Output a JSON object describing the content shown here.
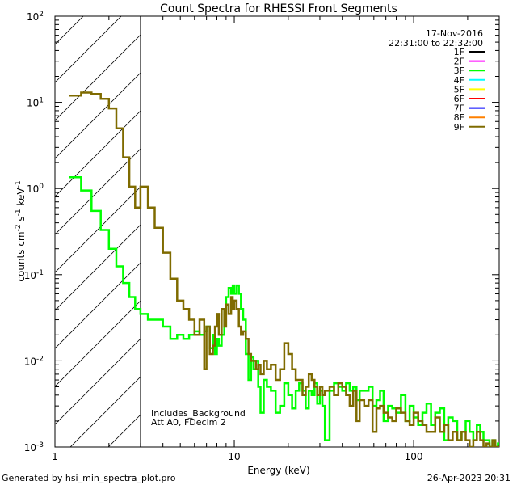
{
  "chart_data": {
    "type": "line",
    "title": "Count Spectra for RHESSI Front Segments",
    "xlabel": "Energy (keV)",
    "ylabel": "counts cm-2 s-1 keV-1",
    "ylabel_parts": {
      "base": "counts cm",
      "exp1": "-2",
      "mid": " s",
      "exp2": "-1",
      "unit": " keV",
      "exp3": "-1"
    },
    "xscale": "log",
    "yscale": "log",
    "xlim": [
      1,
      300
    ],
    "ylim": [
      0.001,
      100
    ],
    "x_ticks": [
      {
        "value": 1,
        "label": "1"
      },
      {
        "value": 10,
        "label": "10"
      },
      {
        "value": 100,
        "label": "100"
      }
    ],
    "y_ticks": [
      {
        "value": 0.001,
        "base": "10",
        "exp": "-3"
      },
      {
        "value": 0.01,
        "base": "10",
        "exp": "-2"
      },
      {
        "value": 0.1,
        "base": "10",
        "exp": "-1"
      },
      {
        "value": 1,
        "base": "10",
        "exp": "0"
      },
      {
        "value": 10,
        "base": "10",
        "exp": "1"
      },
      {
        "value": 100,
        "base": "10",
        "exp": "2"
      }
    ],
    "hatched_region": {
      "from": 1,
      "to": 3
    },
    "legend": {
      "date": "17-Nov-2016",
      "time_range": "22:31:00 to 22:32:00",
      "placement": "top-right",
      "entries": [
        {
          "label": "1F",
          "color": "#000000"
        },
        {
          "label": "2F",
          "color": "#ff00ff"
        },
        {
          "label": "3F",
          "color": "#00ff00"
        },
        {
          "label": "4F",
          "color": "#00ffff"
        },
        {
          "label": "5F",
          "color": "#ffff00"
        },
        {
          "label": "6F",
          "color": "#ff0000"
        },
        {
          "label": "7F",
          "color": "#0000ff"
        },
        {
          "label": "8F",
          "color": "#ff8000"
        },
        {
          "label": "9F",
          "color": "#7f6b00"
        }
      ]
    },
    "annotations": [
      "Includes_Background",
      "Att A0, FDecim 2"
    ],
    "series": [
      {
        "name": "3F",
        "color": "#00ff00",
        "x": [
          1.2,
          1.4,
          1.6,
          1.8,
          2.0,
          2.2,
          2.4,
          2.6,
          2.8,
          3.0,
          3.3,
          3.6,
          4.0,
          4.4,
          4.8,
          5.2,
          5.6,
          6.0,
          6.4,
          6.8,
          7.0,
          7.3,
          7.6,
          7.8,
          8.0,
          8.2,
          8.5,
          8.8,
          9.0,
          9.3,
          9.6,
          9.8,
          10.0,
          10.3,
          10.6,
          10.9,
          11.2,
          11.6,
          12.0,
          12.4,
          12.8,
          13.2,
          13.6,
          14.0,
          14.6,
          15.2,
          16.0,
          17.0,
          18.0,
          19.0,
          20.0,
          21.0,
          22.0,
          23.0,
          24.0,
          25.0,
          26.0,
          27.0,
          28.0,
          29.0,
          30.0,
          31.0,
          32.0,
          34.0,
          36.0,
          38.0,
          40.0,
          42.0,
          44.0,
          46.0,
          48.0,
          50.0,
          53.0,
          56.0,
          59.0,
          62.0,
          65.0,
          68.0,
          72.0,
          76.0,
          80.0,
          85.0,
          90.0,
          95.0,
          100.0,
          106.0,
          112.0,
          118.0,
          125.0,
          132.0,
          140.0,
          148.0,
          156.0,
          165.0,
          175.0,
          185.0,
          195.0,
          205.0,
          215.0,
          225.0,
          235.0,
          245.0,
          255.0,
          265.0,
          275.0,
          285.0,
          295.0
        ],
        "y": [
          1.35,
          0.95,
          0.55,
          0.33,
          0.2,
          0.125,
          0.08,
          0.055,
          0.04,
          0.035,
          0.03,
          0.03,
          0.025,
          0.018,
          0.02,
          0.018,
          0.02,
          0.022,
          0.02,
          0.022,
          0.025,
          0.014,
          0.02,
          0.012,
          0.018,
          0.015,
          0.02,
          0.04,
          0.055,
          0.07,
          0.06,
          0.075,
          0.06,
          0.075,
          0.06,
          0.04,
          0.03,
          0.012,
          0.006,
          0.011,
          0.008,
          0.01,
          0.005,
          0.0025,
          0.006,
          0.005,
          0.0045,
          0.0025,
          0.003,
          0.0055,
          0.004,
          0.0028,
          0.0045,
          0.0055,
          0.0045,
          0.0028,
          0.0045,
          0.004,
          0.0055,
          0.0032,
          0.0045,
          0.003,
          0.0012,
          0.0045,
          0.0055,
          0.005,
          0.0045,
          0.0055,
          0.0045,
          0.005,
          0.0035,
          0.0045,
          0.0045,
          0.005,
          0.003,
          0.0035,
          0.0045,
          0.002,
          0.003,
          0.0028,
          0.0025,
          0.004,
          0.002,
          0.003,
          0.0022,
          0.0018,
          0.0025,
          0.0032,
          0.0018,
          0.0025,
          0.0028,
          0.0012,
          0.0022,
          0.002,
          0.0012,
          0.0015,
          0.002,
          0.0015,
          0.0012,
          0.0018,
          0.0015,
          0.0012,
          0.0012,
          0.001,
          0.0012,
          0.001,
          0.0011
        ]
      },
      {
        "name": "9F",
        "color": "#7f6b00",
        "x": [
          1.2,
          1.4,
          1.6,
          1.8,
          2.0,
          2.2,
          2.4,
          2.6,
          2.8,
          3.0,
          3.3,
          3.6,
          4.0,
          4.4,
          4.8,
          5.2,
          5.6,
          6.0,
          6.4,
          6.8,
          7.0,
          7.3,
          7.6,
          7.8,
          8.0,
          8.2,
          8.5,
          8.8,
          9.0,
          9.3,
          9.6,
          9.8,
          10.0,
          10.3,
          10.6,
          10.9,
          11.2,
          11.6,
          12.0,
          12.4,
          12.8,
          13.2,
          13.6,
          14.0,
          14.6,
          15.2,
          16.0,
          17.0,
          18.0,
          19.0,
          20.0,
          21.0,
          22.0,
          23.0,
          24.0,
          25.0,
          26.0,
          27.0,
          28.0,
          29.0,
          30.0,
          31.0,
          32.0,
          34.0,
          36.0,
          38.0,
          40.0,
          42.0,
          44.0,
          46.0,
          48.0,
          50.0,
          53.0,
          56.0,
          59.0,
          62.0,
          65.0,
          68.0,
          72.0,
          76.0,
          80.0,
          85.0,
          90.0,
          95.0,
          100.0,
          106.0,
          112.0,
          118.0,
          125.0,
          132.0,
          140.0,
          148.0,
          156.0,
          165.0,
          175.0,
          185.0,
          195.0,
          205.0,
          215.0,
          225.0,
          235.0,
          245.0,
          255.0,
          265.0,
          275.0,
          285.0,
          295.0
        ],
        "y": [
          12.0,
          13.0,
          12.5,
          11.0,
          8.5,
          5.0,
          2.3,
          1.05,
          0.6,
          1.05,
          0.6,
          0.35,
          0.18,
          0.09,
          0.05,
          0.04,
          0.03,
          0.02,
          0.03,
          0.008,
          0.025,
          0.012,
          0.015,
          0.025,
          0.035,
          0.02,
          0.04,
          0.025,
          0.045,
          0.035,
          0.055,
          0.04,
          0.05,
          0.04,
          0.025,
          0.02,
          0.022,
          0.018,
          0.012,
          0.01,
          0.01,
          0.008,
          0.009,
          0.007,
          0.01,
          0.008,
          0.009,
          0.006,
          0.008,
          0.016,
          0.012,
          0.008,
          0.006,
          0.006,
          0.004,
          0.005,
          0.007,
          0.006,
          0.005,
          0.004,
          0.005,
          0.004,
          0.0045,
          0.005,
          0.004,
          0.0055,
          0.005,
          0.004,
          0.003,
          0.0045,
          0.002,
          0.0035,
          0.003,
          0.0035,
          0.0015,
          0.0028,
          0.003,
          0.0025,
          0.0022,
          0.002,
          0.0028,
          0.0025,
          0.002,
          0.0018,
          0.0025,
          0.002,
          0.0018,
          0.0015,
          0.0015,
          0.0022,
          0.0015,
          0.0018,
          0.0012,
          0.0015,
          0.0012,
          0.0015,
          0.0012,
          0.001,
          0.0012,
          0.0015,
          0.0012,
          0.001,
          0.0011,
          0.001,
          0.0012,
          0.001,
          0.001
        ]
      }
    ]
  },
  "footer": {
    "generated_by": "Generated by hsi_min_spectra_plot.pro",
    "timestamp": "26-Apr-2023 20:31"
  }
}
